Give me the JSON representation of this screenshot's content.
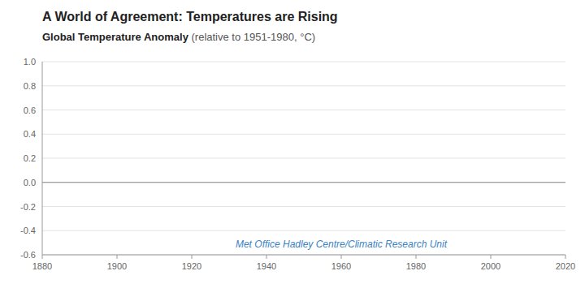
{
  "chart_data": {
    "type": "line",
    "title": "A World of Agreement: Temperatures are Rising",
    "subtitle": [
      "Global Temperature Anomaly",
      " (relative to 1951-1980, °C)"
    ],
    "xlim": [
      1880,
      2020
    ],
    "xticks": [
      1880,
      1900,
      1920,
      1940,
      1960,
      1980,
      2000,
      2020
    ],
    "ylim": [
      -0.6,
      1.0
    ],
    "yticks": [
      -0.6,
      -0.4,
      -0.2,
      {
        "value": 0.0,
        "label": "0.0"
      },
      0.2,
      0.4,
      0.6,
      0.8,
      {
        "value": 1.0,
        "label": "1.0"
      }
    ],
    "grid": true,
    "reference_lines": [
      {
        "y": 0.0
      }
    ],
    "annotations": [
      {
        "text": "Met Office Hadley Centre/Climatic Research Unit",
        "x": 1960,
        "y": -0.51
      }
    ]
  }
}
